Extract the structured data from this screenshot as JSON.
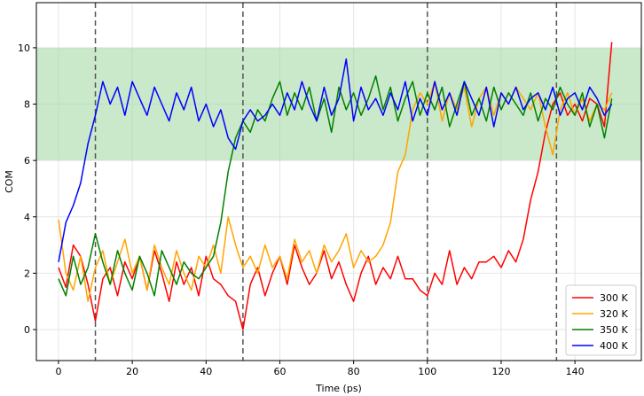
{
  "chart_data": {
    "type": "line",
    "title": "",
    "xlabel": "Time (ps)",
    "ylabel": "COM",
    "xlim": [
      -6,
      158
    ],
    "ylim": [
      -1.1,
      11.6
    ],
    "xticks": [
      0,
      20,
      40,
      60,
      80,
      100,
      120,
      140
    ],
    "yticks": [
      0,
      2,
      4,
      6,
      8,
      10
    ],
    "grid": true,
    "legend": "bottom-right",
    "band": {
      "y0": 6,
      "y1": 10,
      "color": "#9fd59f"
    },
    "vlines": [
      10,
      50,
      100,
      135
    ],
    "series": [
      {
        "name": "300 K",
        "color": "#ff0000",
        "x": [
          0,
          2,
          4,
          6,
          8,
          10,
          12,
          14,
          16,
          18,
          20,
          22,
          24,
          26,
          28,
          30,
          32,
          34,
          36,
          38,
          40,
          42,
          44,
          46,
          48,
          50,
          52,
          54,
          56,
          58,
          60,
          62,
          64,
          66,
          68,
          70,
          72,
          74,
          76,
          78,
          80,
          82,
          84,
          86,
          88,
          90,
          92,
          94,
          96,
          98,
          100,
          102,
          104,
          106,
          108,
          110,
          112,
          114,
          116,
          118,
          120,
          122,
          124,
          126,
          128,
          130,
          132,
          134,
          136,
          138,
          140,
          142,
          144,
          146,
          148,
          150
        ],
        "values": [
          2.2,
          1.5,
          3.0,
          2.6,
          1.6,
          0.3,
          1.8,
          2.2,
          1.2,
          2.4,
          1.8,
          2.6,
          1.4,
          2.8,
          2.0,
          1.0,
          2.4,
          1.6,
          2.2,
          1.2,
          2.6,
          1.8,
          1.6,
          1.2,
          1.0,
          0.0,
          1.6,
          2.2,
          1.2,
          2.0,
          2.6,
          1.6,
          3.0,
          2.2,
          1.6,
          2.0,
          2.8,
          1.8,
          2.4,
          1.6,
          1.0,
          2.0,
          2.6,
          1.6,
          2.2,
          1.8,
          2.6,
          1.8,
          1.8,
          1.4,
          1.2,
          2.0,
          1.6,
          2.8,
          1.6,
          2.2,
          1.8,
          2.4,
          2.4,
          2.6,
          2.2,
          2.8,
          2.4,
          3.2,
          4.6,
          5.6,
          7.0,
          8.0,
          8.4,
          7.6,
          8.0,
          7.4,
          8.2,
          8.0,
          7.2,
          10.2
        ]
      },
      {
        "name": "320 K",
        "color": "#ffa500",
        "x": [
          0,
          2,
          4,
          6,
          8,
          10,
          12,
          14,
          16,
          18,
          20,
          22,
          24,
          26,
          28,
          30,
          32,
          34,
          36,
          38,
          40,
          42,
          44,
          46,
          48,
          50,
          52,
          54,
          56,
          58,
          60,
          62,
          64,
          66,
          68,
          70,
          72,
          74,
          76,
          78,
          80,
          82,
          84,
          86,
          88,
          90,
          92,
          94,
          96,
          98,
          100,
          102,
          104,
          106,
          108,
          110,
          112,
          114,
          116,
          118,
          120,
          122,
          124,
          126,
          128,
          130,
          132,
          134,
          136,
          138,
          140,
          142,
          144,
          146,
          148,
          150
        ],
        "values": [
          3.9,
          2.0,
          1.4,
          2.6,
          1.0,
          2.2,
          2.8,
          1.6,
          2.4,
          3.2,
          2.0,
          2.6,
          1.4,
          3.0,
          2.2,
          1.6,
          2.8,
          2.0,
          1.4,
          2.6,
          2.2,
          3.0,
          2.0,
          4.0,
          3.0,
          2.2,
          2.6,
          2.0,
          3.0,
          2.2,
          2.6,
          1.8,
          3.2,
          2.4,
          2.8,
          2.0,
          3.0,
          2.4,
          2.8,
          3.4,
          2.2,
          2.8,
          2.4,
          2.6,
          3.0,
          3.8,
          5.6,
          6.2,
          7.8,
          8.4,
          8.0,
          8.8,
          7.4,
          8.4,
          7.8,
          8.6,
          7.2,
          8.2,
          8.6,
          7.6,
          8.4,
          8.0,
          8.6,
          8.2,
          7.8,
          8.4,
          7.2,
          6.2,
          7.8,
          8.4,
          7.6,
          8.2,
          7.4,
          8.0,
          7.8,
          8.4
        ]
      },
      {
        "name": "350 K",
        "color": "#008000",
        "x": [
          0,
          2,
          4,
          6,
          8,
          10,
          12,
          14,
          16,
          18,
          20,
          22,
          24,
          26,
          28,
          30,
          32,
          34,
          36,
          38,
          40,
          42,
          44,
          46,
          48,
          50,
          52,
          54,
          56,
          58,
          60,
          62,
          64,
          66,
          68,
          70,
          72,
          74,
          76,
          78,
          80,
          82,
          84,
          86,
          88,
          90,
          92,
          94,
          96,
          98,
          100,
          102,
          104,
          106,
          108,
          110,
          112,
          114,
          116,
          118,
          120,
          122,
          124,
          126,
          128,
          130,
          132,
          134,
          136,
          138,
          140,
          142,
          144,
          146,
          148,
          150
        ],
        "values": [
          1.8,
          1.2,
          2.6,
          1.6,
          2.2,
          3.4,
          2.4,
          1.6,
          2.8,
          2.0,
          1.4,
          2.6,
          2.0,
          1.2,
          2.8,
          2.2,
          1.6,
          2.4,
          2.0,
          1.8,
          2.2,
          2.6,
          3.8,
          5.6,
          6.8,
          7.4,
          7.0,
          7.8,
          7.4,
          8.2,
          8.8,
          7.6,
          8.4,
          7.8,
          8.6,
          7.4,
          8.2,
          7.0,
          8.6,
          7.8,
          8.4,
          7.6,
          8.2,
          9.0,
          7.8,
          8.6,
          7.4,
          8.2,
          8.8,
          7.6,
          8.4,
          7.8,
          8.6,
          7.2,
          8.0,
          8.8,
          7.6,
          8.2,
          7.4,
          8.6,
          7.8,
          8.4,
          8.0,
          7.6,
          8.4,
          7.4,
          8.2,
          7.8,
          8.6,
          8.0,
          7.6,
          8.4,
          7.2,
          8.0,
          6.8,
          8.2
        ]
      },
      {
        "name": "400 K",
        "color": "#0000ff",
        "x": [
          0,
          2,
          4,
          6,
          8,
          10,
          12,
          14,
          16,
          18,
          20,
          22,
          24,
          26,
          28,
          30,
          32,
          34,
          36,
          38,
          40,
          42,
          44,
          46,
          48,
          50,
          52,
          54,
          56,
          58,
          60,
          62,
          64,
          66,
          68,
          70,
          72,
          74,
          76,
          78,
          80,
          82,
          84,
          86,
          88,
          90,
          92,
          94,
          96,
          98,
          100,
          102,
          104,
          106,
          108,
          110,
          112,
          114,
          116,
          118,
          120,
          122,
          124,
          126,
          128,
          130,
          132,
          134,
          136,
          138,
          140,
          142,
          144,
          146,
          148,
          150
        ],
        "values": [
          2.4,
          3.8,
          4.4,
          5.2,
          6.6,
          7.6,
          8.8,
          8.0,
          8.6,
          7.6,
          8.8,
          8.2,
          7.6,
          8.6,
          8.0,
          7.4,
          8.4,
          7.8,
          8.6,
          7.4,
          8.0,
          7.2,
          7.8,
          6.8,
          6.4,
          7.4,
          7.8,
          7.4,
          7.6,
          8.0,
          7.6,
          8.4,
          7.8,
          8.8,
          8.0,
          7.4,
          8.6,
          7.6,
          8.2,
          9.6,
          7.4,
          8.6,
          7.8,
          8.2,
          7.6,
          8.4,
          7.8,
          8.8,
          7.4,
          8.2,
          7.6,
          8.8,
          7.8,
          8.4,
          7.6,
          8.8,
          8.2,
          7.6,
          8.6,
          7.2,
          8.4,
          8.0,
          8.6,
          7.8,
          8.2,
          8.4,
          7.8,
          8.6,
          7.6,
          8.2,
          8.4,
          7.8,
          8.6,
          8.2,
          7.6,
          8.0
        ]
      }
    ]
  }
}
